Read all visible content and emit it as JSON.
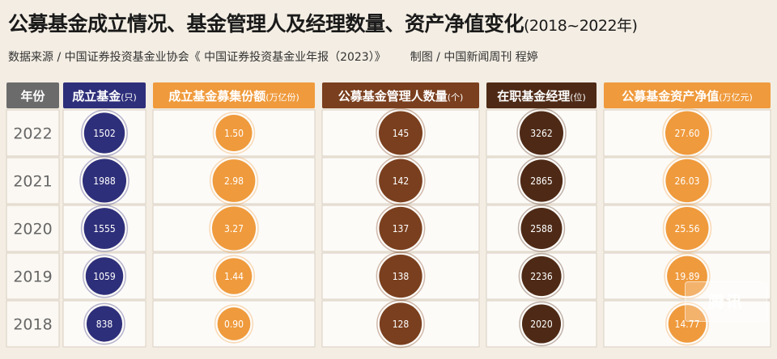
{
  "title": "公募基金成立情况、基金管理人及经理数量、资产净值变化",
  "title_years": "(2018~2022年)",
  "source": "数据来源 / 中国证券投资基金业协会《 中国证券投资基金业年报（2023）》",
  "credit": "制图 / 中国新闻周刊   程婷",
  "watermark": "腾讯",
  "colors": {
    "background": "#f3ede3",
    "year_header": "#6b6b6b",
    "navy": "#2e2f7a",
    "orange": "#ef9a3c",
    "brown": "#7a3f1e",
    "dark_brown": "#4e2a16",
    "sand": "#f6d6a8"
  },
  "chart_data": {
    "type": "table",
    "row_header": "年份",
    "years": [
      "2022",
      "2021",
      "2020",
      "2019",
      "2018"
    ],
    "columns": [
      {
        "key": "funds",
        "header": "成立基金",
        "unit": "(只)",
        "values": [
          1502,
          1988,
          1555,
          1059,
          838
        ],
        "display": [
          "1502",
          "1988",
          "1555",
          "1059",
          "838"
        ],
        "color": "#2e2f7a",
        "header_bg": "#2e2f7a"
      },
      {
        "key": "raised",
        "header": "成立基金募集份额",
        "unit": "(万亿份)",
        "values": [
          1.5,
          2.98,
          3.27,
          1.44,
          0.9
        ],
        "display": [
          "1.50",
          "2.98",
          "3.27",
          "1.44",
          "0.90"
        ],
        "color": "#ef9a3c",
        "header_bg": "#ef9a3c"
      },
      {
        "key": "managers",
        "header": "公募基金管理人数量",
        "unit": "(个)",
        "values": [
          145,
          142,
          137,
          138,
          128
        ],
        "display": [
          "145",
          "142",
          "137",
          "138",
          "128"
        ],
        "color": "#7a3f1e",
        "header_bg": "#7a3f1e"
      },
      {
        "key": "fund_managers",
        "header": "在职基金经理",
        "unit": "(位)",
        "values": [
          3262,
          2865,
          2588,
          2236,
          2020
        ],
        "display": [
          "3262",
          "2865",
          "2588",
          "2236",
          "2020"
        ],
        "color": "#4e2a16",
        "header_bg": "#4e2a16"
      },
      {
        "key": "nav",
        "header": "公募基金资产净值",
        "unit": "(万亿元)",
        "values": [
          27.6,
          26.03,
          25.56,
          19.89,
          14.77
        ],
        "display": [
          "27.60",
          "26.03",
          "25.56",
          "19.89",
          "14.77"
        ],
        "color": "#ef9a3c",
        "header_bg": "#ef9a3c"
      }
    ]
  }
}
